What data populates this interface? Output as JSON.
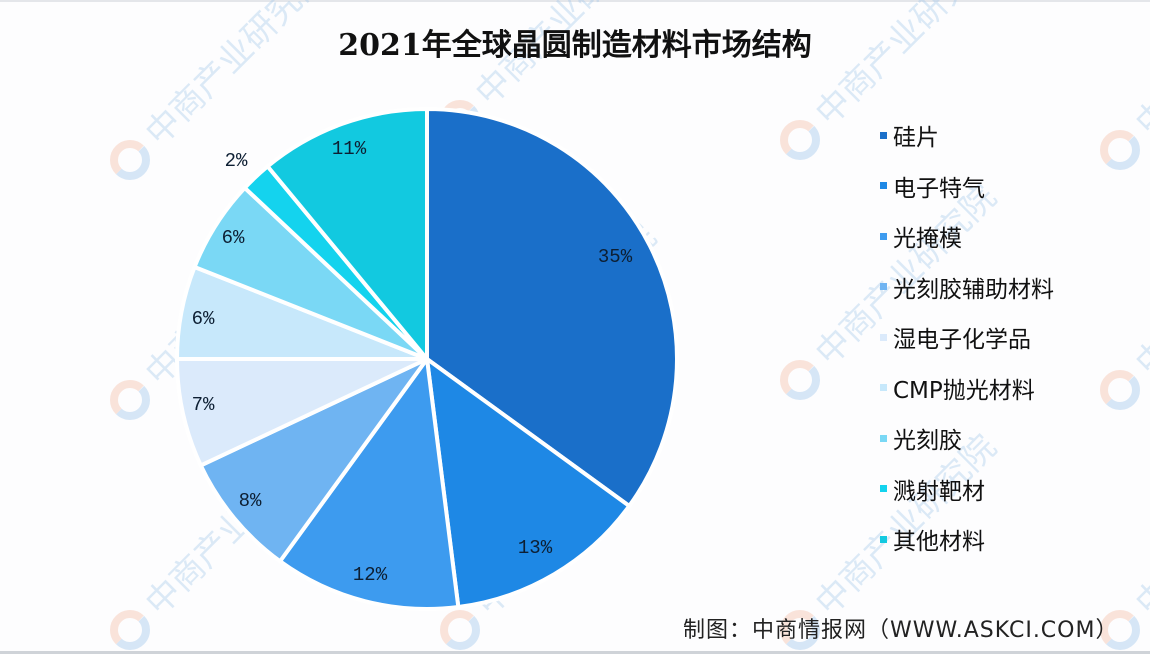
{
  "title": "2021年全球晶圆制造材料市场结构",
  "source": "制图：中商情报网（WWW.ASKCI.COM）",
  "watermark": {
    "text": "中商产业研究院",
    "color": "#9fc6ea"
  },
  "legend": {
    "position": "right",
    "items": [
      {
        "label": "硅片",
        "color": "#1a6fc9"
      },
      {
        "label": "电子特气",
        "color": "#1e88e5"
      },
      {
        "label": "光掩模",
        "color": "#3d9bef"
      },
      {
        "label": "光刻胶辅助材料",
        "color": "#6fb4f2"
      },
      {
        "label": "湿电子化学品",
        "color": "#dbeafb"
      },
      {
        "label": "CMP抛光材料",
        "color": "#c7e8fb"
      },
      {
        "label": "光刻胶",
        "color": "#7ad8f5"
      },
      {
        "label": "溅射靶材",
        "color": "#14d3ee"
      },
      {
        "label": "其他材料",
        "color": "#12c9e0"
      }
    ]
  },
  "chart_data": {
    "type": "pie",
    "title": "2021年全球晶圆制造材料市场结构",
    "categories": [
      "硅片",
      "电子特气",
      "光掩模",
      "光刻胶辅助材料",
      "湿电子化学品",
      "CMP抛光材料",
      "光刻胶",
      "溅射靶材",
      "其他材料"
    ],
    "values": [
      35,
      13,
      12,
      8,
      7,
      6,
      6,
      2,
      11
    ],
    "labels": [
      "35%",
      "13%",
      "12%",
      "8%",
      "7%",
      "6%",
      "6%",
      "2%",
      "11%"
    ],
    "colors": [
      "#1a6fc9",
      "#1e88e5",
      "#3d9bef",
      "#6fb4f2",
      "#dbeafb",
      "#c7e8fb",
      "#7ad8f5",
      "#14d3ee",
      "#12c9e0"
    ],
    "start_angle": "12 o'clock",
    "direction": "clockwise",
    "legend_position": "right",
    "source": "制图：中商情报网（WWW.ASKCI.COM）"
  }
}
